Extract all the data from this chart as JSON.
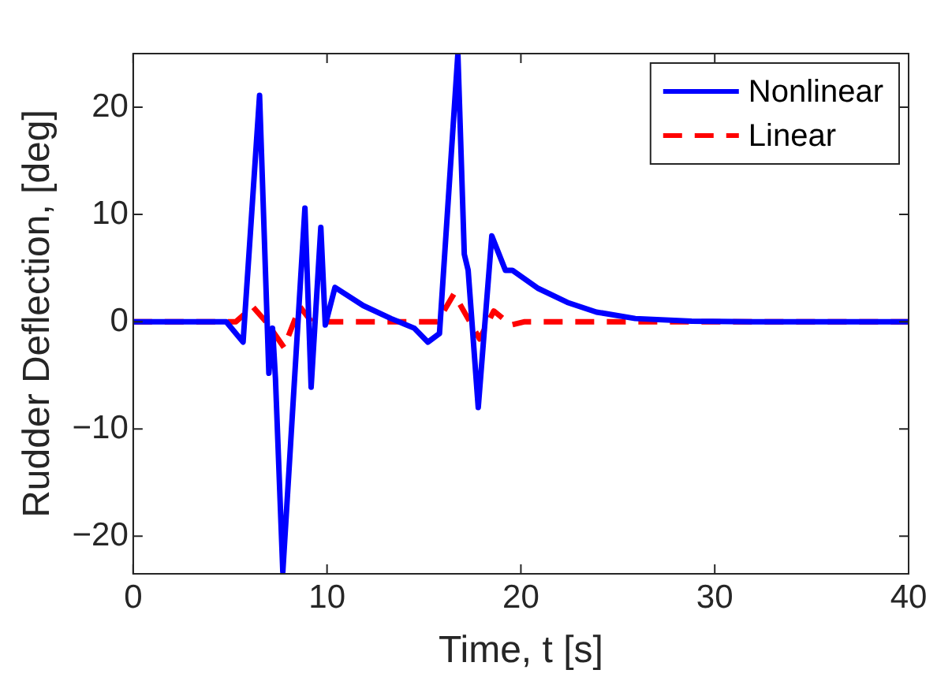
{
  "chart_data": {
    "type": "line",
    "xlabel": "Time, t [s]",
    "ylabel": "Rudder Deflection, [deg]",
    "xlim": [
      0,
      40
    ],
    "xticks": [
      0,
      10,
      20,
      30,
      40
    ],
    "ylim": [
      -23.5,
      25
    ],
    "yticks": [
      -20,
      -10,
      0,
      10,
      20
    ],
    "grid": false,
    "legend": "top right",
    "marker": "none",
    "series": [
      {
        "name": "Nonlinear",
        "color": "#0000ff",
        "line_style": "solid",
        "x": [
          0,
          3.7,
          4.8,
          5.67,
          6.52,
          7.0,
          7.19,
          7.34,
          7.72,
          8.86,
          9.18,
          9.68,
          9.91,
          10.41,
          11.87,
          13.3,
          14.5,
          15.2,
          15.8,
          16.75,
          17.08,
          17.28,
          17.8,
          18.5,
          19.2,
          19.56,
          20.9,
          22.4,
          23.9,
          25.9,
          28.8,
          32,
          40
        ],
        "values": [
          0,
          0,
          0,
          -1.9,
          21.1,
          -4.8,
          -0.6,
          -5.3,
          -23.3,
          10.6,
          -6.1,
          8.8,
          -0.3,
          3.2,
          1.5,
          0.3,
          -0.6,
          -1.9,
          -1.1,
          25,
          6.3,
          4.8,
          -8.0,
          8.0,
          4.8,
          4.8,
          3.1,
          1.8,
          0.9,
          0.3,
          0.05,
          0,
          0
        ]
      },
      {
        "name": "Linear",
        "color": "#ff0000",
        "line_style": "dashed",
        "x": [
          0,
          5.3,
          6.17,
          6.9,
          7.78,
          8.6,
          9.2,
          15.7,
          16.55,
          17.87,
          18.6,
          19.5,
          20.2,
          40
        ],
        "values": [
          0,
          0,
          1.4,
          -0.1,
          -2.4,
          1.4,
          0,
          0,
          2.6,
          -1.6,
          1.0,
          -0.3,
          0,
          0
        ]
      }
    ]
  }
}
